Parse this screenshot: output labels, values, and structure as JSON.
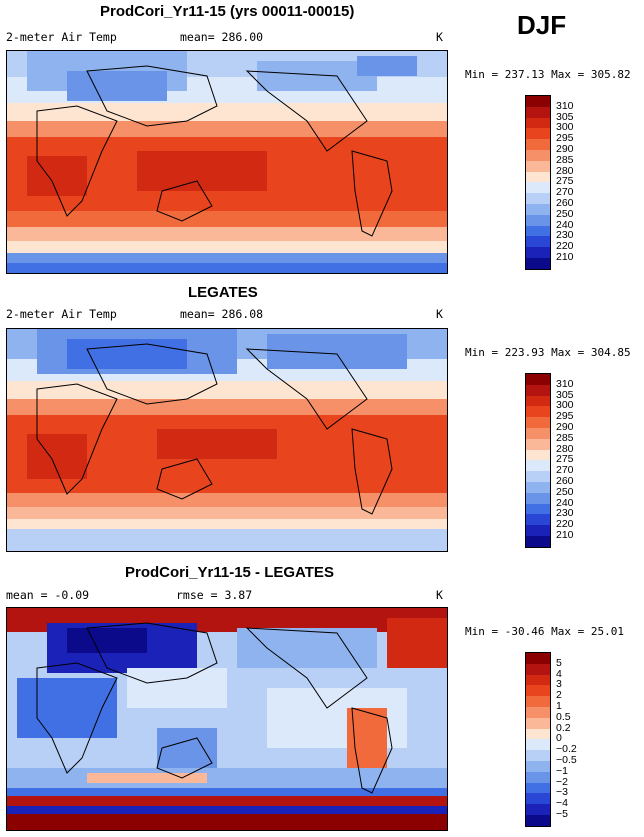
{
  "season": "DJF",
  "panels": [
    {
      "title": "ProdCori_Yr11-15 (yrs 00011-00015)",
      "left_label": "2-meter Air Temp",
      "mid_label": "mean= 286.00",
      "unit": "K",
      "minmax": "Min = 237.13 Max = 305.82",
      "colorbar": {
        "levels": [
          "310",
          "305",
          "300",
          "295",
          "290",
          "285",
          "280",
          "275",
          "270",
          "260",
          "250",
          "240",
          "230",
          "220",
          "210"
        ],
        "colors": [
          "#8b0000",
          "#b41410",
          "#d22a12",
          "#e8451e",
          "#f06a3c",
          "#f69068",
          "#fab898",
          "#fde5d2",
          "#dce9fb",
          "#b8d0f5",
          "#8fb3ee",
          "#6a94e8",
          "#4070e4",
          "#2a46d4",
          "#1a22b8",
          "#0a0a8a"
        ]
      }
    },
    {
      "title": "LEGATES",
      "left_label": "2-meter Air Temp",
      "mid_label": "mean= 286.08",
      "unit": "K",
      "minmax": "Min = 223.93 Max = 304.85",
      "colorbar": {
        "levels": [
          "310",
          "305",
          "300",
          "295",
          "290",
          "285",
          "280",
          "275",
          "270",
          "260",
          "250",
          "240",
          "230",
          "220",
          "210"
        ],
        "colors": [
          "#8b0000",
          "#b41410",
          "#d22a12",
          "#e8451e",
          "#f06a3c",
          "#f69068",
          "#fab898",
          "#fde5d2",
          "#dce9fb",
          "#b8d0f5",
          "#8fb3ee",
          "#6a94e8",
          "#4070e4",
          "#2a46d4",
          "#1a22b8",
          "#0a0a8a"
        ]
      }
    },
    {
      "title": "ProdCori_Yr11-15 - LEGATES",
      "left_label": "mean =  -0.09",
      "mid_label": "rmse =    3.87",
      "unit": "K",
      "minmax": "Min = -30.46 Max =  25.01",
      "colorbar": {
        "levels": [
          "5",
          "4",
          "3",
          "2",
          "1",
          "0.5",
          "0.2",
          "0",
          "−0.2",
          "−0.5",
          "−1",
          "−2",
          "−3",
          "−4",
          "−5"
        ],
        "colors": [
          "#8b0000",
          "#b41410",
          "#d22a12",
          "#e8451e",
          "#f06a3c",
          "#f69068",
          "#fab898",
          "#fde5d2",
          "#dce9fb",
          "#b8d0f5",
          "#8fb3ee",
          "#6a94e8",
          "#4070e4",
          "#2a46d4",
          "#1a22b8",
          "#0a0a8a"
        ]
      }
    }
  ],
  "chart_data": [
    {
      "type": "heatmap",
      "title": "ProdCori_Yr11-15 (yrs 00011-00015)",
      "variable": "2-meter Air Temp",
      "unit": "K",
      "mean": 286.0,
      "min": 237.13,
      "max": 305.82,
      "levels": [
        210,
        220,
        230,
        240,
        250,
        260,
        270,
        275,
        280,
        285,
        290,
        295,
        300,
        305,
        310
      ]
    },
    {
      "type": "heatmap",
      "title": "LEGATES",
      "variable": "2-meter Air Temp",
      "unit": "K",
      "mean": 286.08,
      "min": 223.93,
      "max": 304.85,
      "levels": [
        210,
        220,
        230,
        240,
        250,
        260,
        270,
        275,
        280,
        285,
        290,
        295,
        300,
        305,
        310
      ]
    },
    {
      "type": "heatmap",
      "title": "ProdCori_Yr11-15 - LEGATES",
      "unit": "K",
      "mean": -0.09,
      "rmse": 3.87,
      "min": -30.46,
      "max": 25.01,
      "levels": [
        -5,
        -4,
        -3,
        -2,
        -1,
        -0.5,
        -0.2,
        0,
        0.2,
        0.5,
        1,
        2,
        3,
        4,
        5
      ]
    }
  ]
}
